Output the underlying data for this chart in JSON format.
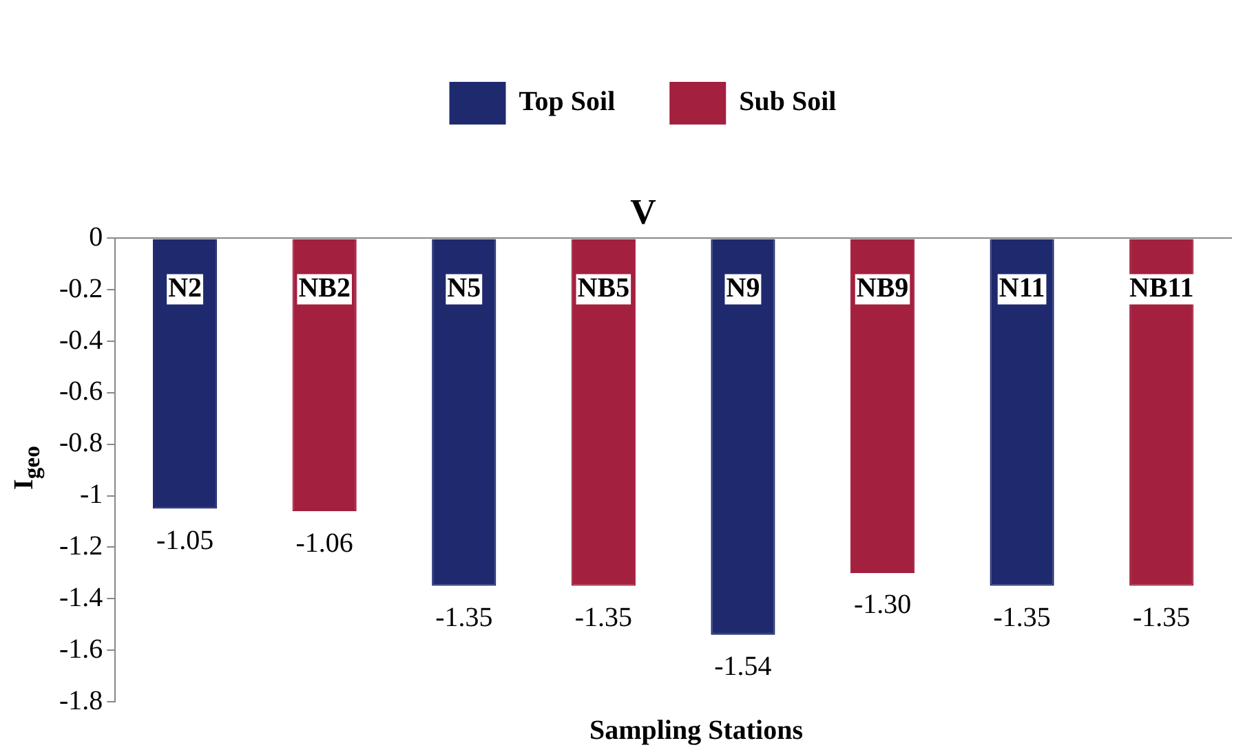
{
  "chart_data": {
    "type": "bar",
    "title": "V",
    "xlabel": "Sampling Stations",
    "ylabel": "I$_{geo}$",
    "categories": [
      "N2",
      "NB2",
      "N5",
      "NB5",
      "N9",
      "NB9",
      "N11",
      "NB11"
    ],
    "series": [
      {
        "name": "Top Soil",
        "color": "#1f2a6e",
        "values": [
          -1.05,
          null,
          -1.35,
          null,
          -1.54,
          null,
          -1.35,
          null
        ],
        "value_labels": [
          "-1.05",
          null,
          "-1.35",
          null,
          "-1.54",
          null,
          "-1.35",
          null
        ]
      },
      {
        "name": "Sub Soil",
        "color": "#a3203f",
        "values": [
          null,
          -1.06,
          null,
          -1.35,
          null,
          -1.3,
          null,
          -1.35
        ],
        "value_labels": [
          null,
          "-1.06",
          null,
          "-1.35",
          null,
          "-1.30",
          null,
          "-1.35"
        ]
      }
    ],
    "ylim": [
      -1.8,
      0
    ],
    "yticks": [
      0,
      -0.2,
      -0.4,
      -0.6,
      -0.8,
      -1,
      -1.2,
      -1.4,
      -1.6,
      -1.8
    ],
    "grid": false,
    "legend": "top"
  }
}
